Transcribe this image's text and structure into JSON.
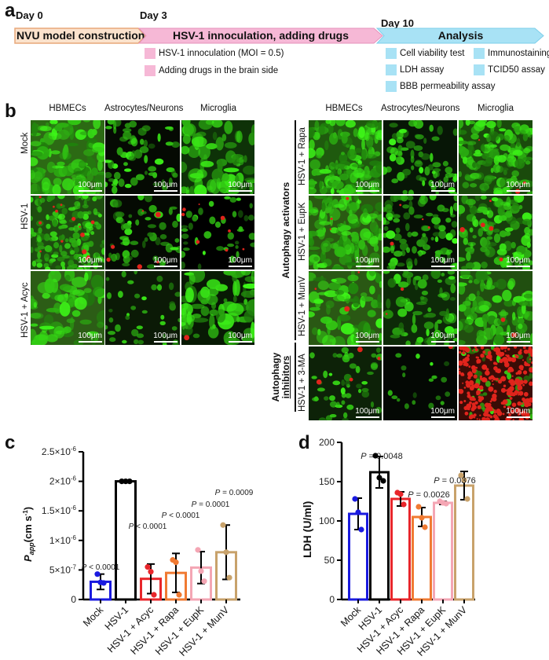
{
  "panels": {
    "a": {
      "letter": "a",
      "days": [
        "Day 0",
        "Day 3",
        "Day 10"
      ],
      "stages": [
        {
          "label": "NVU model construction",
          "color": "#fbe2cc",
          "border": "#e8a87a"
        },
        {
          "label": "HSV-1 innoculation, adding drugs",
          "color": "#f6b8d6",
          "border": "#e592bb"
        },
        {
          "label": "Analysis",
          "color": "#a8e2f5",
          "border": "#7dcfea"
        }
      ],
      "stage2_items": [
        "HSV-1 innoculation (MOI = 0.5)",
        "Adding drugs in the brain side"
      ],
      "stage3_items": [
        "Cell viability test",
        "Immunostaining",
        "LDH assay",
        "TCID50 assay",
        "BBB permeability assay"
      ]
    },
    "b": {
      "letter": "b",
      "columns": [
        "HBMECs",
        "Astrocytes/Neurons",
        "Microglia"
      ],
      "left_rows": [
        "Mock",
        "HSV-1",
        "HSV-1 + Acyc"
      ],
      "right_rows": [
        "HSV-1 + Rapa",
        "HSV-1 + EupK",
        "HSV-1 + MunV",
        "HSV-1 + 3-MA"
      ],
      "group_activators": "Autophagy activators",
      "group_inhibitors_line1": "Autophagy",
      "group_inhibitors_line2": "inhibitors",
      "scale_bar": "100μm"
    },
    "c": {
      "letter": "c"
    },
    "d": {
      "letter": "d"
    }
  },
  "chart_data": [
    {
      "panel": "c",
      "type": "bar",
      "title": "",
      "xlabel": "",
      "ylabel": "Papp (cm s-1)",
      "ylim": [
        0,
        2.5e-06
      ],
      "yticks": [
        "0",
        "5×10-7",
        "1×10-6",
        "1.5×10-6",
        "2×10-6",
        "2.5×10-6"
      ],
      "categories": [
        "Mock",
        "HSV-1",
        "HSV-1 + Acyc",
        "HSV-1 + Rapa",
        "HSV-1 + EupK",
        "HSV-1 + MunV"
      ],
      "values": [
        3e-07,
        2e-06,
        3.5e-07,
        4.5e-07,
        5.4e-07,
        8e-07
      ],
      "errors": [
        1.3e-07,
        0,
        2.5e-07,
        3.3e-07,
        2.7e-07,
        4.6e-07
      ],
      "points": [
        [
          4.3e-07,
          2.9e-07,
          2.8e-07
        ],
        [
          2e-06,
          2e-06,
          2e-06
        ],
        [
          5.5e-07,
          4.7e-07,
          8e-08
        ],
        [
          6.7e-07,
          6.3e-07,
          8e-08
        ],
        [
          8.4e-07,
          4.8e-07,
          3.1e-07
        ],
        [
          1.26e-06,
          8e-07,
          3.7e-07
        ]
      ],
      "colors": [
        "#1a1adf",
        "#000000",
        "#e8262b",
        "#f07a32",
        "#f4a6b4",
        "#c8a26b"
      ],
      "annotations": [
        "P < 0.0001",
        "",
        "P < 0.0001",
        "P < 0.0001",
        "P = 0.0001",
        "P = 0.0009"
      ]
    },
    {
      "panel": "d",
      "type": "bar",
      "title": "",
      "xlabel": "",
      "ylabel": "LDH (U/ml)",
      "ylim": [
        0,
        200
      ],
      "yticks": [
        "0",
        "50",
        "100",
        "150",
        "200"
      ],
      "categories": [
        "Mock",
        "HSV-1",
        "HSV-1 + Acyc",
        "HSV-1 + Rapa",
        "HSV-1 + EupK",
        "HSV-1 + MunV"
      ],
      "values": [
        109,
        162,
        128,
        105,
        123,
        145
      ],
      "errors": [
        20,
        20,
        9,
        12,
        2,
        18
      ],
      "points": [
        [
          128,
          111,
          89
        ],
        [
          183,
          155,
          151
        ],
        [
          136,
          134,
          121
        ],
        [
          118,
          104,
          92
        ],
        [
          125,
          123,
          122
        ],
        [
          158,
          152,
          128
        ]
      ],
      "colors": [
        "#1a1adf",
        "#000000",
        "#e8262b",
        "#f07a32",
        "#f4a6b4",
        "#c8a26b"
      ],
      "annotations": [
        "P = 0.0048",
        "",
        "P = 0.0026",
        "",
        "",
        "P = 0.0376"
      ]
    }
  ]
}
